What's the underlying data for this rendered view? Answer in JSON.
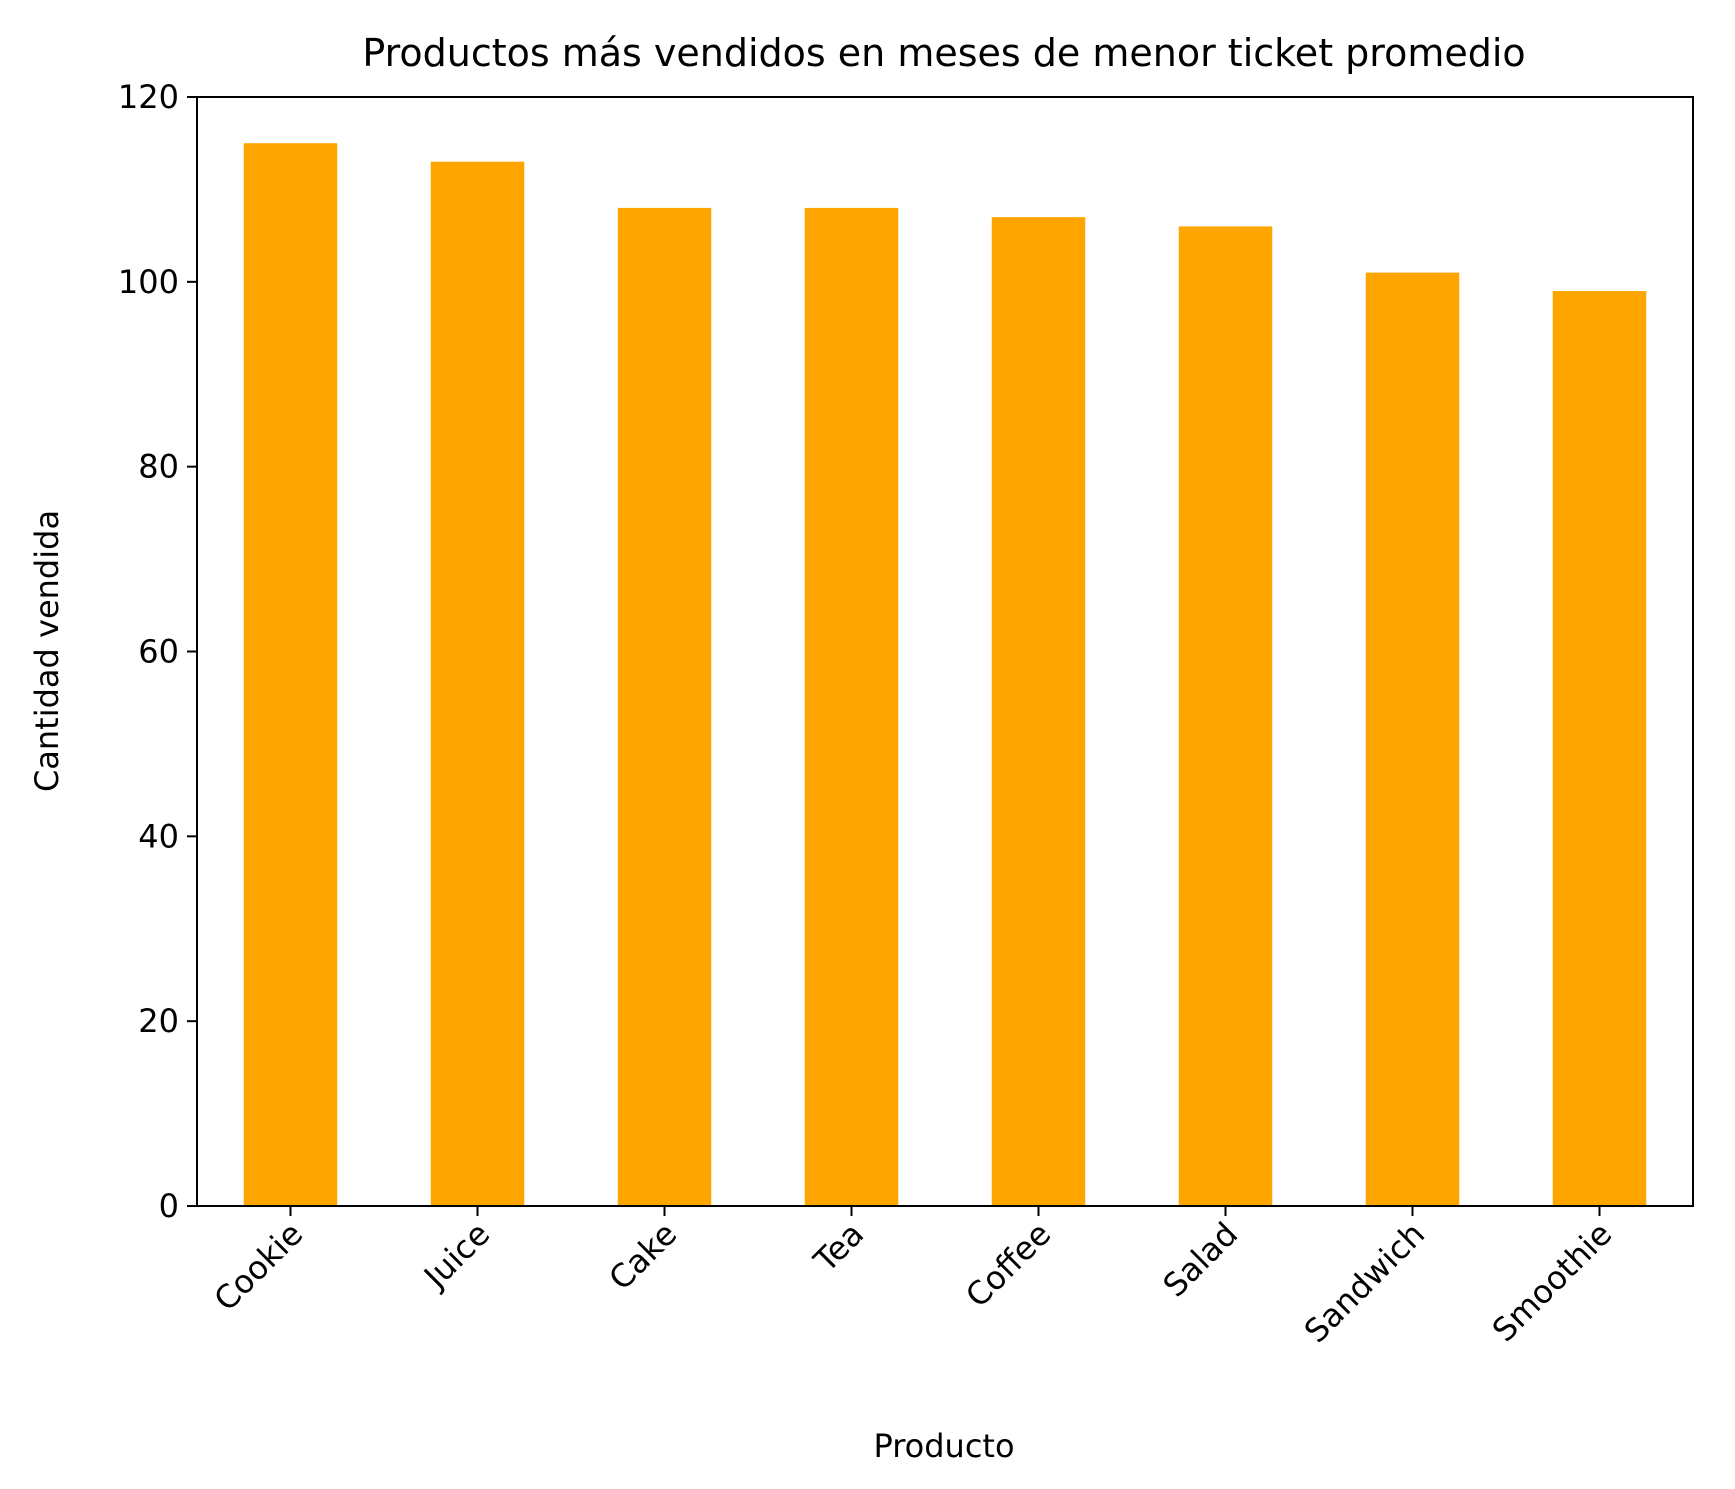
{
  "chart_data": {
    "type": "bar",
    "title": "Productos más vendidos en meses de menor ticket promedio",
    "xlabel": "Producto",
    "ylabel": "Cantidad vendida",
    "categories": [
      "Cookie",
      "Juice",
      "Cake",
      "Tea",
      "Coffee",
      "Salad",
      "Sandwich",
      "Smoothie"
    ],
    "values": [
      115,
      113,
      108,
      108,
      107,
      106,
      101,
      99
    ],
    "ylim": [
      0,
      120
    ],
    "yticks": [
      0,
      20,
      40,
      60,
      80,
      100,
      120
    ],
    "grid": false,
    "legend": "none",
    "bar_color": "#FFA500",
    "axis_color": "#000000"
  }
}
